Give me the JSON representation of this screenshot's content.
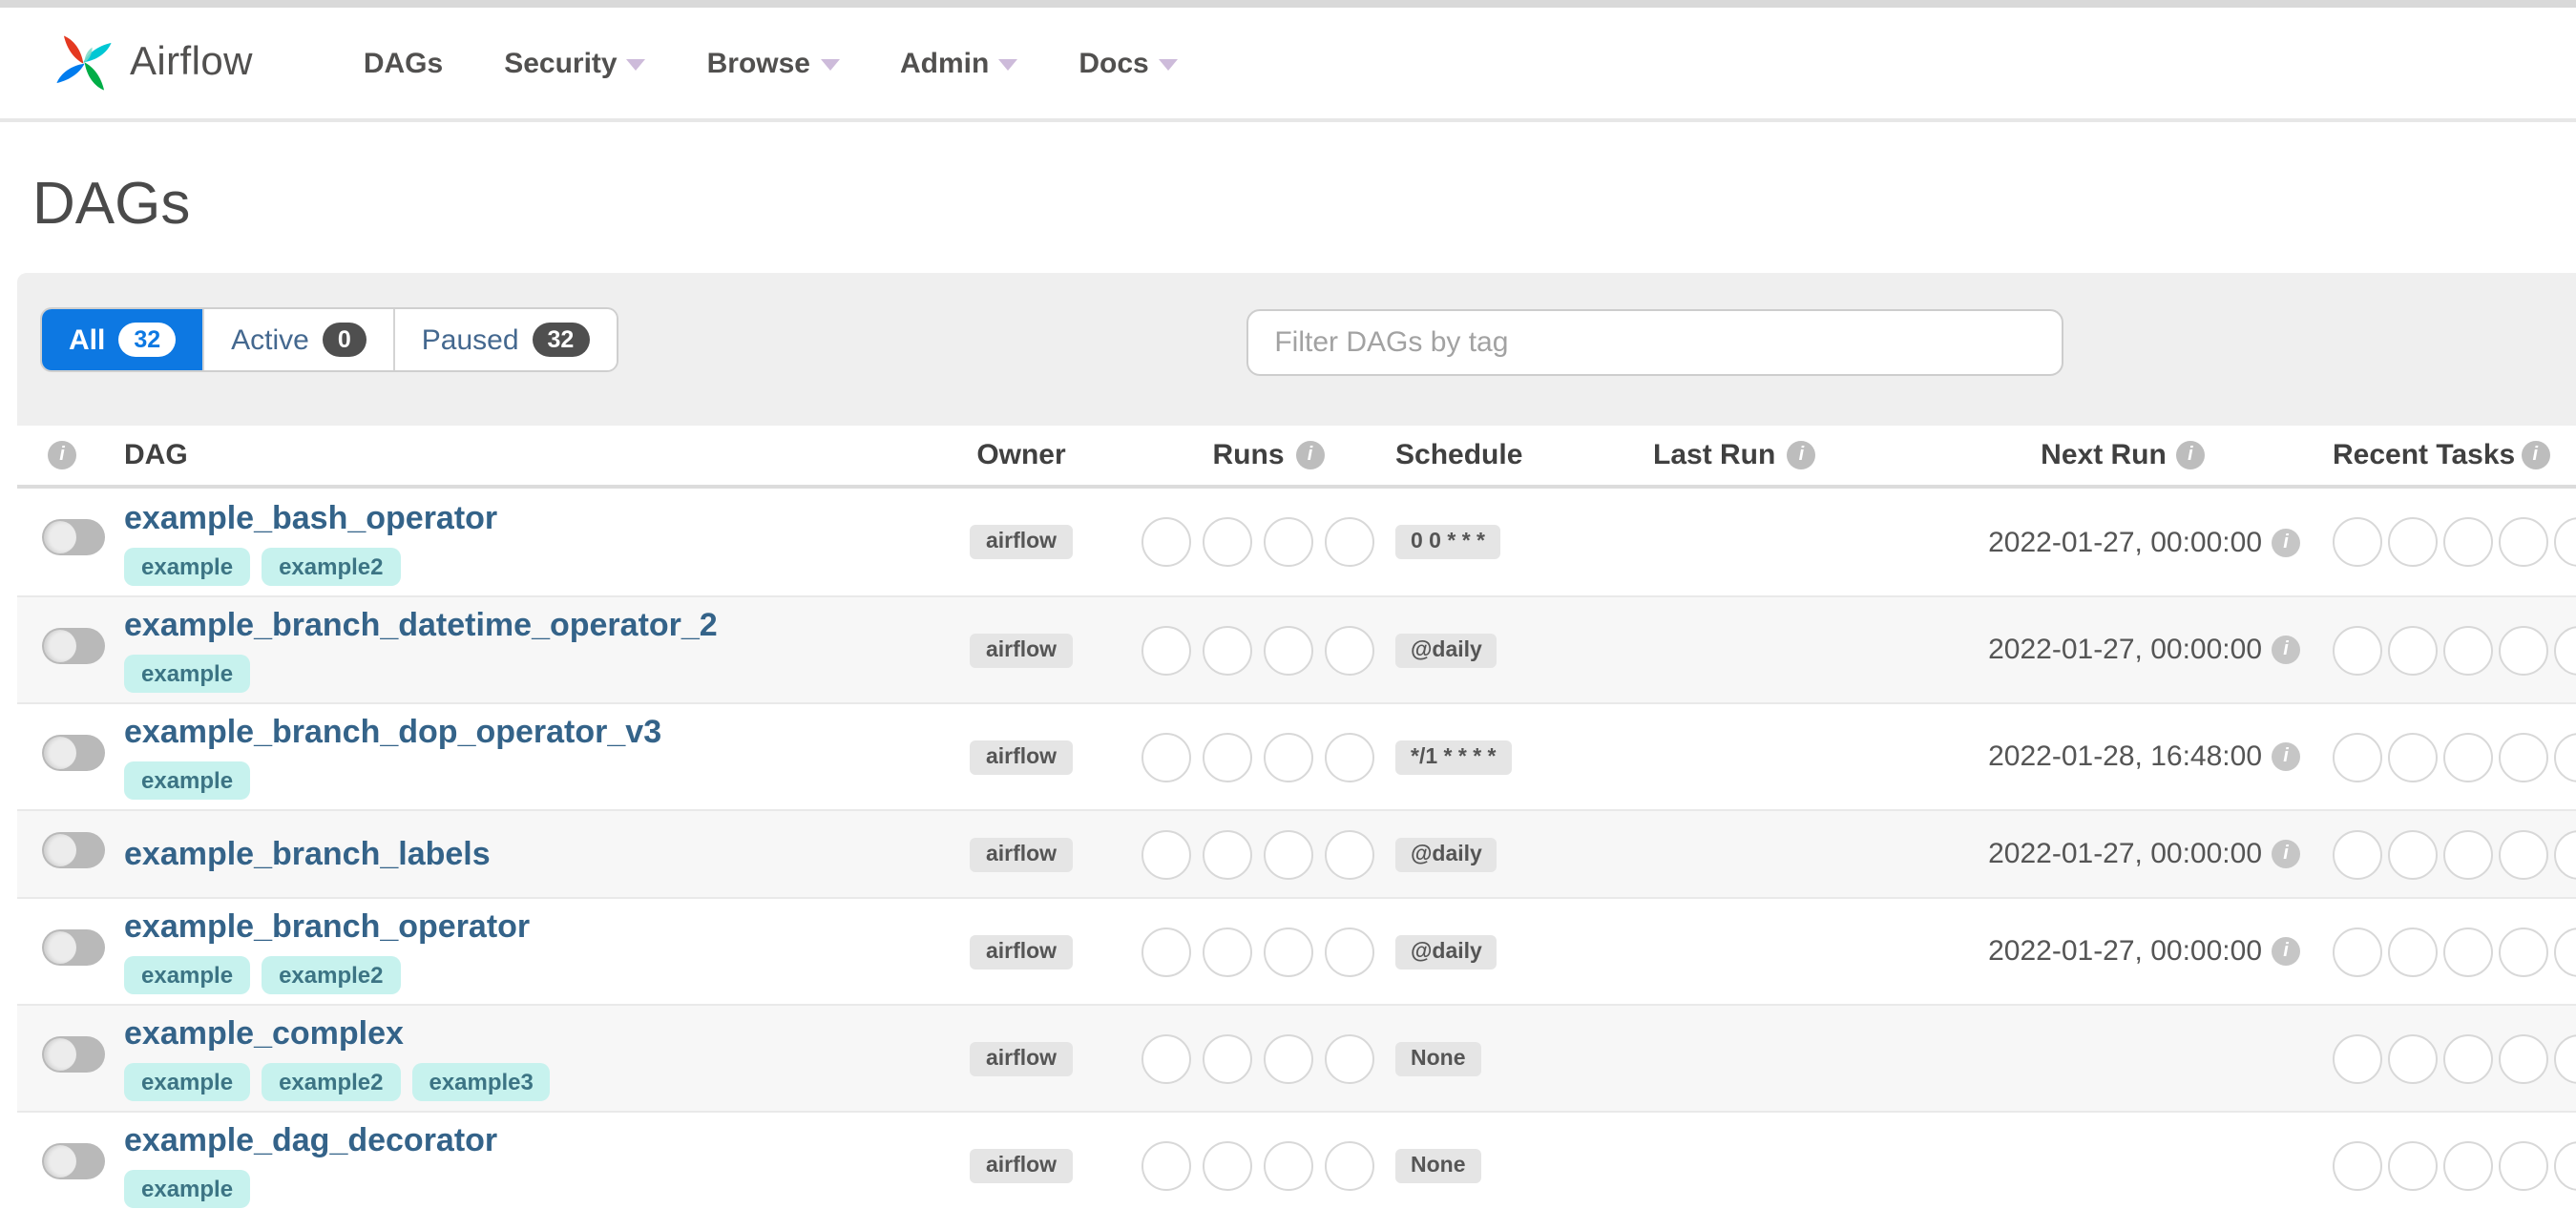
{
  "navbar": {
    "brand": "Airflow",
    "items": [
      {
        "label": "DAGs",
        "has_caret": false
      },
      {
        "label": "Security",
        "has_caret": true
      },
      {
        "label": "Browse",
        "has_caret": true
      },
      {
        "label": "Admin",
        "has_caret": true
      },
      {
        "label": "Docs",
        "has_caret": true
      }
    ]
  },
  "page": {
    "title": "DAGs"
  },
  "filter_bar": {
    "tabs": [
      {
        "label": "All",
        "count": "32",
        "active": true
      },
      {
        "label": "Active",
        "count": "0",
        "active": false
      },
      {
        "label": "Paused",
        "count": "32",
        "active": false
      }
    ],
    "search_placeholder": "Filter DAGs by tag"
  },
  "table": {
    "headers": {
      "dag": "DAG",
      "owner": "Owner",
      "runs": "Runs",
      "schedule": "Schedule",
      "last_run": "Last Run",
      "next_run": "Next Run",
      "recent_tasks": "Recent Tasks"
    },
    "runs_slot_count": 4,
    "recent_tasks_slot_count": 5,
    "rows": [
      {
        "name": "example_bash_operator",
        "tags": [
          "example",
          "example2"
        ],
        "owner": "airflow",
        "schedule": "0 0 * * *",
        "last_run": "",
        "next_run": "2022-01-27, 00:00:00"
      },
      {
        "name": "example_branch_datetime_operator_2",
        "tags": [
          "example"
        ],
        "owner": "airflow",
        "schedule": "@daily",
        "last_run": "",
        "next_run": "2022-01-27, 00:00:00"
      },
      {
        "name": "example_branch_dop_operator_v3",
        "tags": [
          "example"
        ],
        "owner": "airflow",
        "schedule": "*/1 * * * *",
        "last_run": "",
        "next_run": "2022-01-28, 16:48:00"
      },
      {
        "name": "example_branch_labels",
        "tags": [],
        "owner": "airflow",
        "schedule": "@daily",
        "last_run": "",
        "next_run": "2022-01-27, 00:00:00"
      },
      {
        "name": "example_branch_operator",
        "tags": [
          "example",
          "example2"
        ],
        "owner": "airflow",
        "schedule": "@daily",
        "last_run": "",
        "next_run": "2022-01-27, 00:00:00"
      },
      {
        "name": "example_complex",
        "tags": [
          "example",
          "example2",
          "example3"
        ],
        "owner": "airflow",
        "schedule": "None",
        "last_run": "",
        "next_run": ""
      },
      {
        "name": "example_dag_decorator",
        "tags": [
          "example"
        ],
        "owner": "airflow",
        "schedule": "None",
        "last_run": "",
        "next_run": ""
      }
    ]
  },
  "colors": {
    "accent_blue": "#0d78e2",
    "tag_bg": "#c7f2ee",
    "tag_text": "#3c7484",
    "logo_red": "#e43921",
    "logo_cyan": "#00c7d4",
    "logo_green": "#00ad46",
    "logo_blue": "#017cee"
  }
}
